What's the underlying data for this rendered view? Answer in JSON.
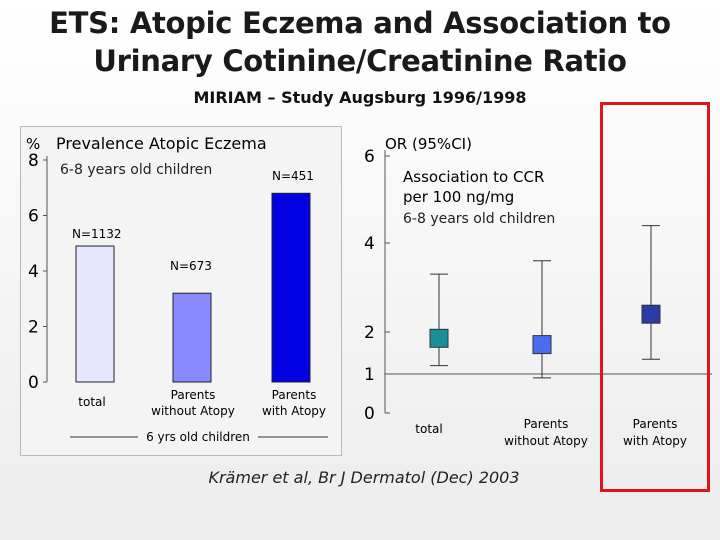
{
  "slide": {
    "title_line1": "ETS: Atopic Eczema and Association to",
    "title_line2": "Urinary Cotinine/Creatinine Ratio",
    "subtitle": "MIRIAM – Study Augsburg 1996/1998",
    "citation": "Krämer et al, Br J Dermatol  (Dec) 2003",
    "colors": {
      "highlight": "#e0141c",
      "panel_bg": "#f4f4f4"
    }
  },
  "chart_data": [
    {
      "type": "bar",
      "title": "Prevalence Atopic Eczema",
      "subtitle": "6-8 years old children",
      "ylabel": "%",
      "ylim": [
        0,
        8
      ],
      "yticks": [
        "0",
        "2",
        "4",
        "6",
        "8"
      ],
      "categories": [
        "total",
        "Parents without Atopy",
        "Parents with Atopy"
      ],
      "values": [
        4.9,
        3.2,
        6.8
      ],
      "annotations": [
        "N=1132",
        "N=673",
        "N=451"
      ],
      "group_label": "6 yrs old children",
      "colors": [
        "#e6e6ff",
        "#8888ff",
        "#0000e0"
      ]
    },
    {
      "type": "scatter",
      "title": "OR (95%CI)",
      "subtitle_line1": "Association to CCR",
      "subtitle_line2": "per 100 ng/mg",
      "subtitle_line3": "6-8 years old children",
      "ylim": [
        0,
        6
      ],
      "yticks": [
        "0",
        "1",
        "2",
        "4",
        "6"
      ],
      "categories": [
        "total",
        "Parents without Atopy",
        "Parents with Atopy"
      ],
      "points": [
        {
          "or": 1.85,
          "lower": 1.2,
          "upper": 3.3
        },
        {
          "or": 1.7,
          "lower": 0.9,
          "upper": 3.6
        },
        {
          "or": 2.4,
          "lower": 1.35,
          "upper": 4.4
        }
      ],
      "colors": [
        "#1a8f9a",
        "#4a6cf0",
        "#2a3aa8"
      ]
    }
  ]
}
